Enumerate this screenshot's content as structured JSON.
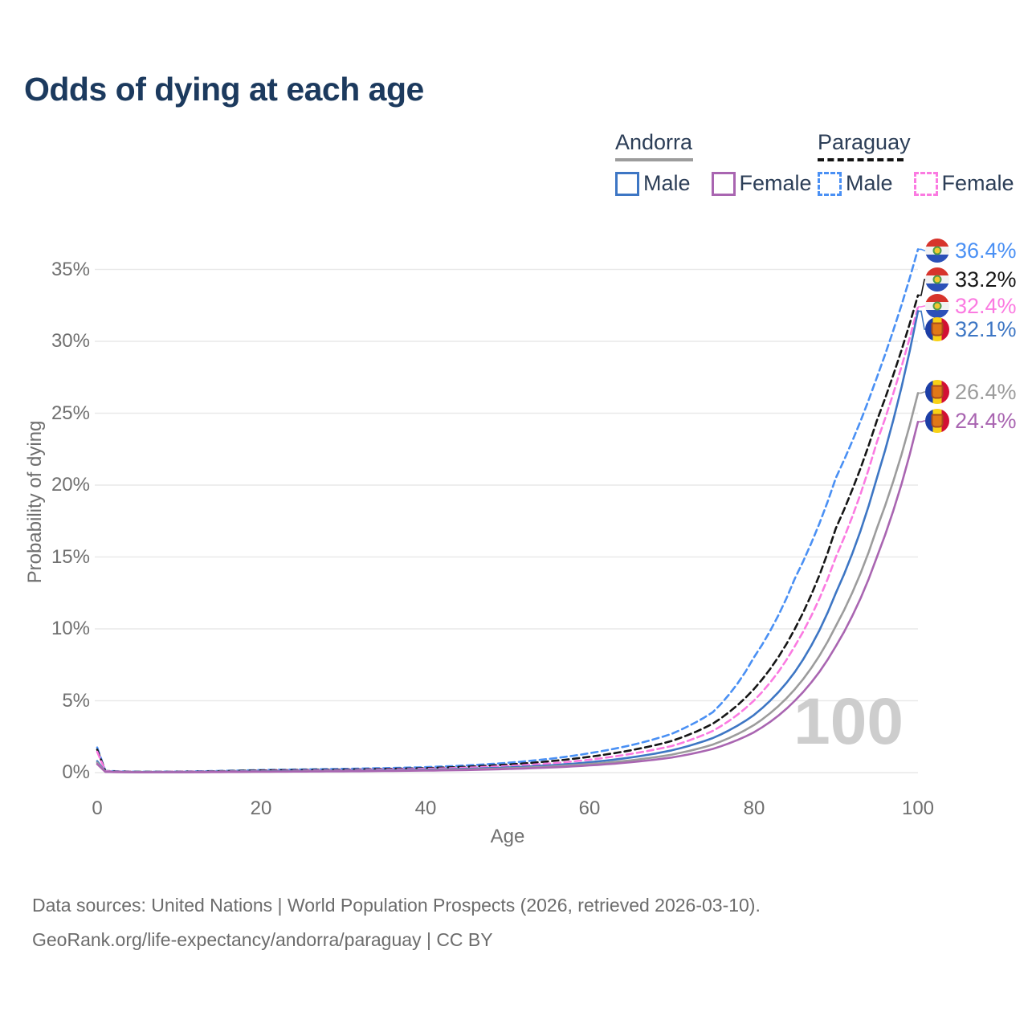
{
  "title": "Odds of dying at each age",
  "legend": {
    "groups": [
      {
        "country": "Andorra",
        "male_label": "Male",
        "female_label": "Female"
      },
      {
        "country": "Paraguay",
        "male_label": "Male",
        "female_label": "Female"
      }
    ]
  },
  "axes": {
    "y_label": "Probability of dying",
    "x_label": "Age",
    "y_tick_labels": [
      "35%",
      "30%",
      "25%",
      "20%",
      "15%",
      "10%",
      "5%",
      "0%"
    ],
    "x_tick_labels": [
      "0",
      "20",
      "40",
      "60",
      "80",
      "100"
    ]
  },
  "watermark": "100",
  "footer": {
    "line1": "Data sources: United Nations | World Population Prospects (2026, retrieved 2026-03-10).",
    "line2": "GeoRank.org/life-expectancy/andorra/paraguay | CC BY"
  },
  "colors": {
    "title": "#1c3a5e",
    "legend_text": "#2c3e57",
    "axis_text": "#6f6f6f",
    "grid": "#e9e9e9",
    "watermark": "#cdcdcd",
    "andorra_line": "#9c9c9c",
    "paraguay_line": "#141414"
  },
  "chart_data": {
    "type": "line",
    "title": "Odds of dying at each age",
    "xlabel": "Age",
    "ylabel": "Probability of dying",
    "xlim": [
      0,
      100
    ],
    "ylim_percent": [
      0,
      37
    ],
    "grid": "horizontal",
    "legend_position": "top-right",
    "ages": [
      0,
      1,
      5,
      10,
      15,
      20,
      25,
      30,
      35,
      40,
      45,
      50,
      55,
      60,
      65,
      70,
      75,
      80,
      85,
      90,
      95,
      100
    ],
    "series": [
      {
        "name": "Paraguay Male",
        "country": "Paraguay",
        "sex": "male",
        "style": "dashed",
        "color": "#4a90f4",
        "values_percent": [
          1.75,
          0.12,
          0.06,
          0.07,
          0.12,
          0.18,
          0.22,
          0.26,
          0.31,
          0.38,
          0.5,
          0.68,
          0.95,
          1.35,
          1.9,
          2.7,
          4.2,
          8.0,
          13.5,
          20.5,
          27.5,
          36.4
        ],
        "end_label": "36.4%"
      },
      {
        "name": "Paraguay Average",
        "country": "Paraguay",
        "sex": "both",
        "style": "dashed",
        "color": "#161616",
        "values_percent": [
          1.6,
          0.11,
          0.05,
          0.06,
          0.1,
          0.15,
          0.18,
          0.21,
          0.25,
          0.31,
          0.41,
          0.56,
          0.78,
          1.1,
          1.55,
          2.2,
          3.4,
          5.8,
          10.0,
          17.0,
          24.5,
          33.2
        ],
        "end_label": "33.2%"
      },
      {
        "name": "Paraguay Female",
        "country": "Paraguay",
        "sex": "female",
        "style": "dashed",
        "color": "#fb7ae1",
        "values_percent": [
          1.45,
          0.1,
          0.04,
          0.05,
          0.08,
          0.11,
          0.14,
          0.17,
          0.21,
          0.26,
          0.34,
          0.46,
          0.63,
          0.9,
          1.3,
          1.85,
          2.9,
          5.0,
          8.8,
          15.0,
          23.0,
          32.4
        ],
        "end_label": "32.4%"
      },
      {
        "name": "Andorra Male",
        "country": "Andorra",
        "sex": "male",
        "style": "solid",
        "color": "#3d76c4",
        "values_percent": [
          0.8,
          0.06,
          0.03,
          0.035,
          0.06,
          0.09,
          0.11,
          0.13,
          0.16,
          0.2,
          0.26,
          0.36,
          0.5,
          0.72,
          1.05,
          1.55,
          2.4,
          4.0,
          7.0,
          12.5,
          20.5,
          32.1
        ],
        "end_label": "32.1%"
      },
      {
        "name": "Andorra Average",
        "country": "Andorra",
        "sex": "both",
        "style": "solid",
        "color": "#9c9c9c",
        "values_percent": [
          0.7,
          0.055,
          0.027,
          0.03,
          0.05,
          0.075,
          0.09,
          0.11,
          0.13,
          0.17,
          0.22,
          0.3,
          0.42,
          0.6,
          0.85,
          1.25,
          1.95,
          3.3,
          5.8,
          10.2,
          17.0,
          26.4
        ],
        "end_label": "26.4%"
      },
      {
        "name": "Andorra Female",
        "country": "Andorra",
        "sex": "female",
        "style": "solid",
        "color": "#a965b1",
        "values_percent": [
          0.6,
          0.05,
          0.024,
          0.027,
          0.04,
          0.06,
          0.075,
          0.09,
          0.11,
          0.14,
          0.18,
          0.25,
          0.35,
          0.5,
          0.72,
          1.05,
          1.65,
          2.8,
          5.0,
          8.8,
          15.0,
          24.4
        ],
        "end_label": "24.4%"
      }
    ],
    "end_labels": [
      {
        "text": "36.4%",
        "color": "#4a90f4",
        "flag": "paraguay",
        "series": "Paraguay Male"
      },
      {
        "text": "33.2%",
        "color": "#161616",
        "flag": "paraguay",
        "series": "Paraguay Average"
      },
      {
        "text": "32.4%",
        "color": "#fb7ae1",
        "flag": "paraguay",
        "series": "Paraguay Female"
      },
      {
        "text": "32.1%",
        "color": "#3d76c4",
        "flag": "andorra",
        "series": "Andorra Male"
      },
      {
        "text": "26.4%",
        "color": "#9c9c9c",
        "flag": "andorra",
        "series": "Andorra Average"
      },
      {
        "text": "24.4%",
        "color": "#a965b1",
        "flag": "andorra",
        "series": "Andorra Female"
      }
    ]
  }
}
